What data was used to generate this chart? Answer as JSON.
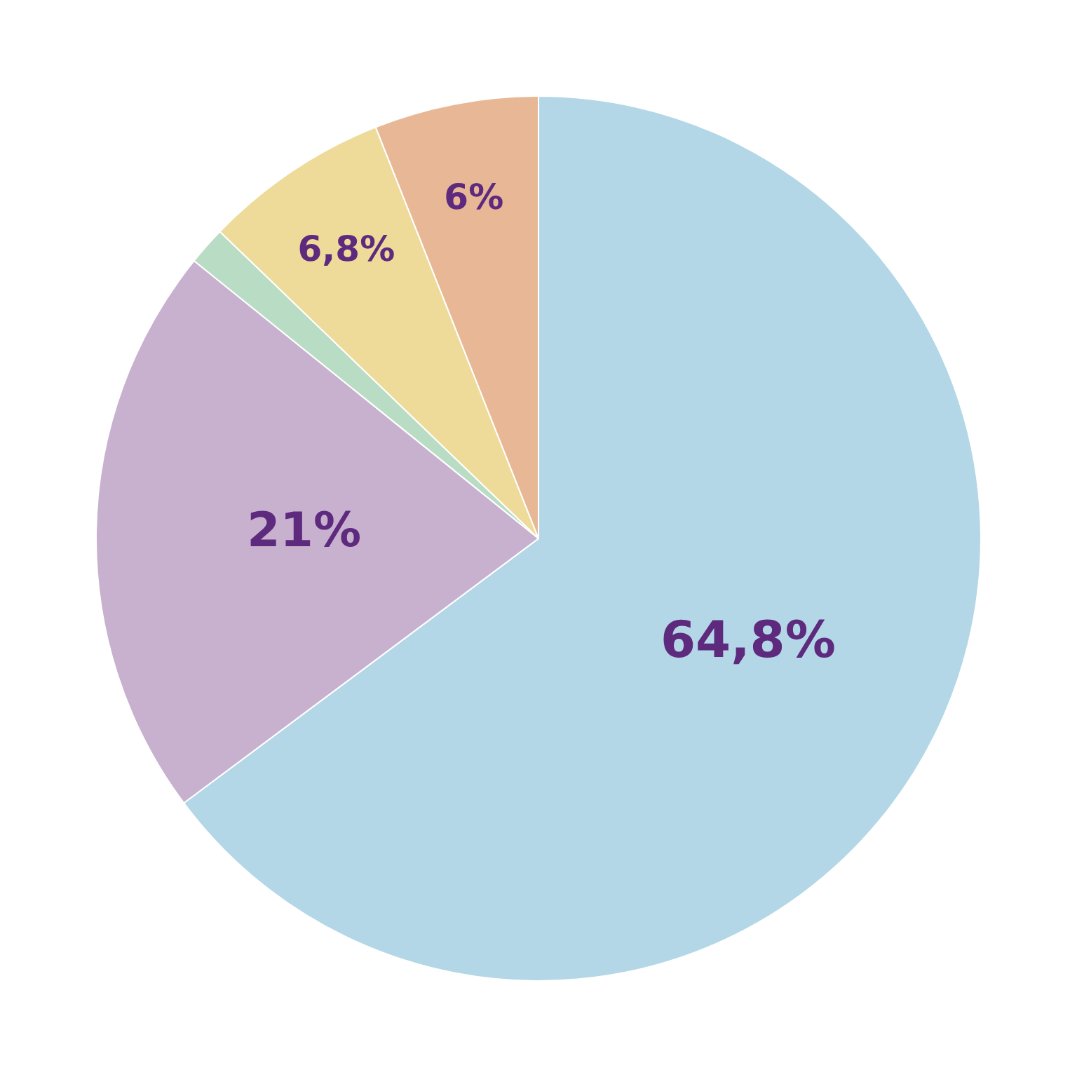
{
  "chart_data": {
    "type": "pie",
    "categories": [
      null,
      null,
      null,
      null,
      null
    ],
    "values": [
      64.8,
      21,
      1.4,
      6.8,
      6
    ],
    "colors": [
      "#b3d7e6",
      "#c8b1cf",
      "#b9dcc4",
      "#eedb9a",
      "#e8b896"
    ],
    "value_labels": [
      "64,8%",
      "21%",
      null,
      "6,8%",
      "6%"
    ],
    "legend": false
  }
}
